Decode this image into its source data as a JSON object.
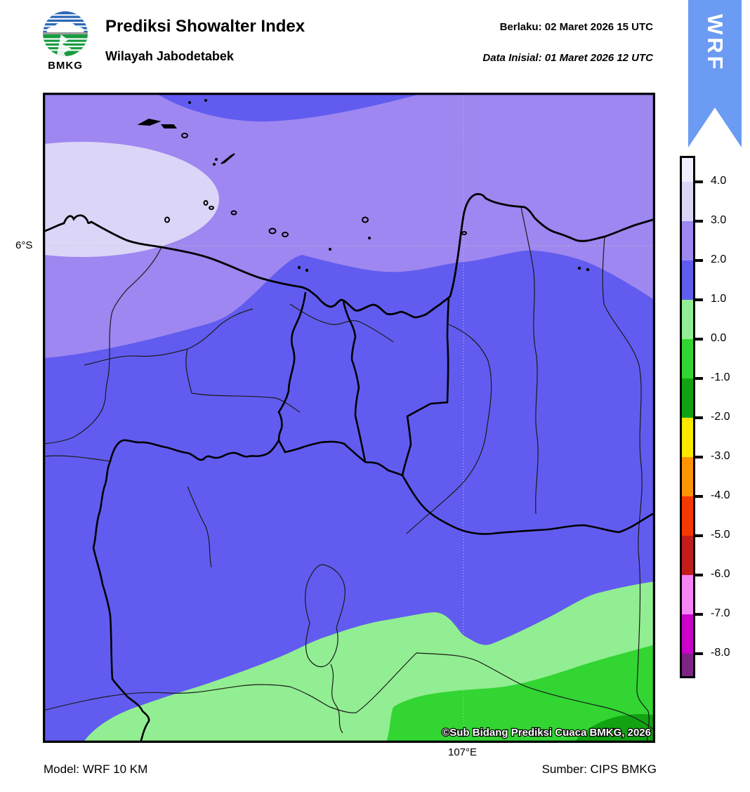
{
  "header": {
    "logo_text": "BMKG",
    "title": "Prediksi Showalter Index",
    "subtitle": "Wilayah Jabodetabek",
    "valid_line": "Berlaku:  02 Maret 2026 15 UTC",
    "init_line": "Data Inisial:  01 Maret 2026 12 UTC",
    "ribbon_label": "WRF"
  },
  "map": {
    "lat_tick_label": "6°S",
    "lon_tick_label": "107°E",
    "copyright": "©Sub Bidang Prediksi Cuaca BMKG, 2026"
  },
  "colorbar": {
    "ticks": [
      "4.0",
      "3.0",
      "2.0",
      "1.0",
      "0.0",
      "-1.0",
      "-2.0",
      "-3.0",
      "-4.0",
      "-5.0",
      "-6.0",
      "-7.0",
      "-8.0"
    ],
    "colors": [
      "#F0EFFD",
      "#DBD6F8",
      "#9E87F0",
      "#615CEF",
      "#92EE92",
      "#32D532",
      "#12A312",
      "#FFE800",
      "#FF9300",
      "#F53800",
      "#C31C1C",
      "#F585F5",
      "#CB00CB",
      "#7C2583"
    ]
  },
  "footer": {
    "model": "Model: WRF 10 KM",
    "source": "Sumber: CIPS BMKG"
  }
}
